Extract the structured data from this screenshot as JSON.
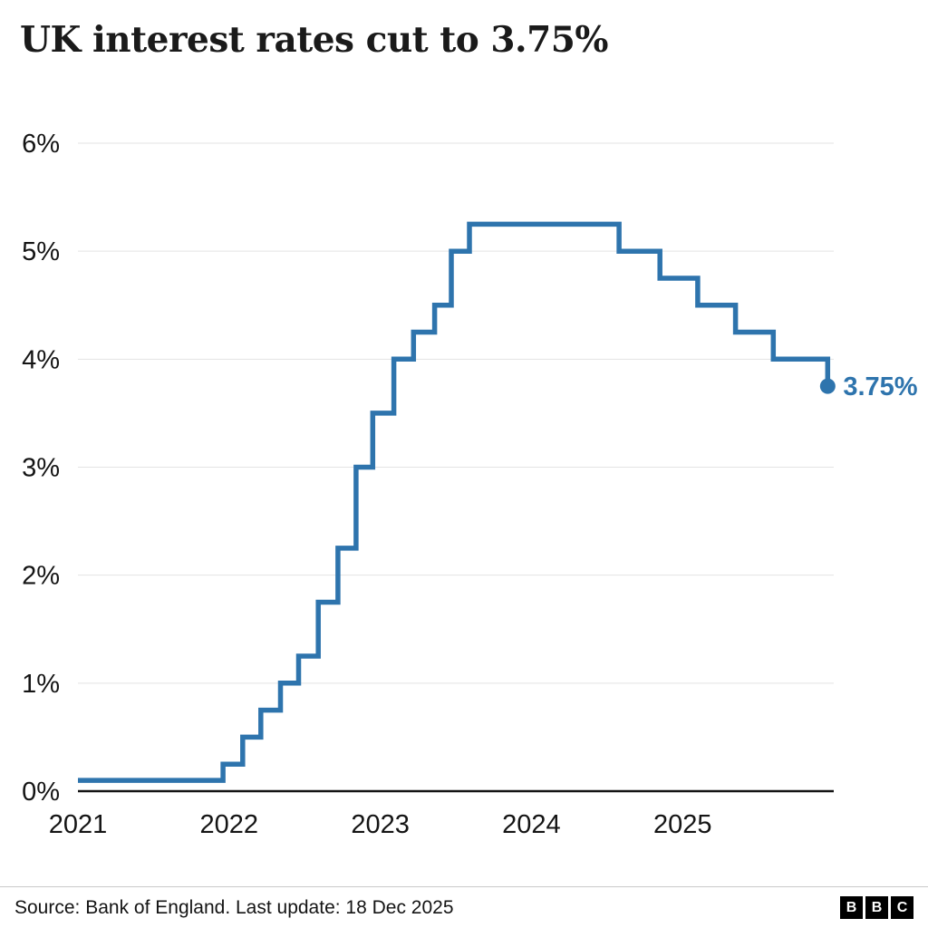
{
  "title": "UK interest rates cut to 3.75%",
  "footer": {
    "source": "Source: Bank of England. Last update: 18 Dec 2025",
    "logo_letters": [
      "B",
      "B",
      "C"
    ]
  },
  "chart_data": {
    "type": "line",
    "subtype": "step",
    "title": "UK interest rates cut to 3.75%",
    "x_unit": "decimal_year",
    "x_range": [
      2021,
      2026
    ],
    "y_range": [
      0,
      6
    ],
    "x_ticks": [
      2021,
      2022,
      2023,
      2024,
      2025
    ],
    "y_ticks": [
      "0%",
      "1%",
      "2%",
      "3%",
      "4%",
      "5%",
      "6%"
    ],
    "grid": true,
    "legend": "none",
    "line_color": "#2e74ad",
    "axis_color": "#141414",
    "grid_color": "#e3e3e3",
    "end_label": "3.75%",
    "points": [
      {
        "x": 2021.0,
        "y": 0.1
      },
      {
        "x": 2021.96,
        "y": 0.25
      },
      {
        "x": 2022.09,
        "y": 0.5
      },
      {
        "x": 2022.21,
        "y": 0.75
      },
      {
        "x": 2022.34,
        "y": 1.0
      },
      {
        "x": 2022.46,
        "y": 1.25
      },
      {
        "x": 2022.59,
        "y": 1.75
      },
      {
        "x": 2022.72,
        "y": 2.25
      },
      {
        "x": 2022.84,
        "y": 3.0
      },
      {
        "x": 2022.95,
        "y": 3.5
      },
      {
        "x": 2023.09,
        "y": 4.0
      },
      {
        "x": 2023.22,
        "y": 4.25
      },
      {
        "x": 2023.36,
        "y": 4.5
      },
      {
        "x": 2023.47,
        "y": 5.0
      },
      {
        "x": 2023.59,
        "y": 5.25
      },
      {
        "x": 2024.58,
        "y": 5.0
      },
      {
        "x": 2024.85,
        "y": 4.75
      },
      {
        "x": 2025.1,
        "y": 4.5
      },
      {
        "x": 2025.35,
        "y": 4.25
      },
      {
        "x": 2025.6,
        "y": 4.0
      },
      {
        "x": 2025.96,
        "y": 3.75
      }
    ]
  }
}
